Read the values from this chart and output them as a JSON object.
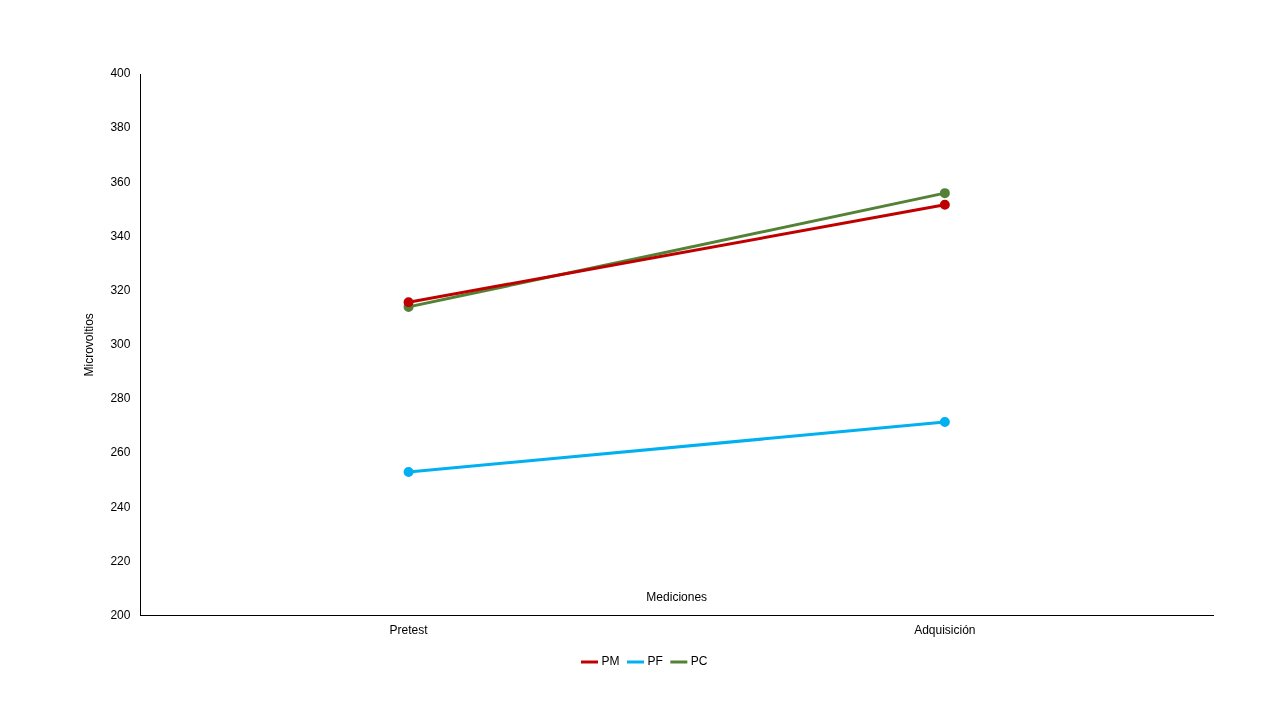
{
  "chart_data": {
    "type": "line",
    "xlabel": "Mediciones",
    "ylabel": "Microvoltios",
    "categories": [
      "Pretest",
      "Adquisición"
    ],
    "series": [
      {
        "name": "PM",
        "color": "#c00000",
        "values": [
          315.7,
          351.7
        ]
      },
      {
        "name": "PF",
        "color": "#00b0f0",
        "values": [
          253,
          271.5
        ]
      },
      {
        "name": "PC",
        "color": "#538135",
        "values": [
          314,
          356
        ]
      }
    ],
    "ylim": [
      200,
      400
    ],
    "yticks": [
      200,
      220,
      240,
      260,
      280,
      300,
      320,
      340,
      360,
      380,
      400
    ],
    "grid": false,
    "legend": "bottom",
    "marker": "circle",
    "line_style": "solid"
  }
}
